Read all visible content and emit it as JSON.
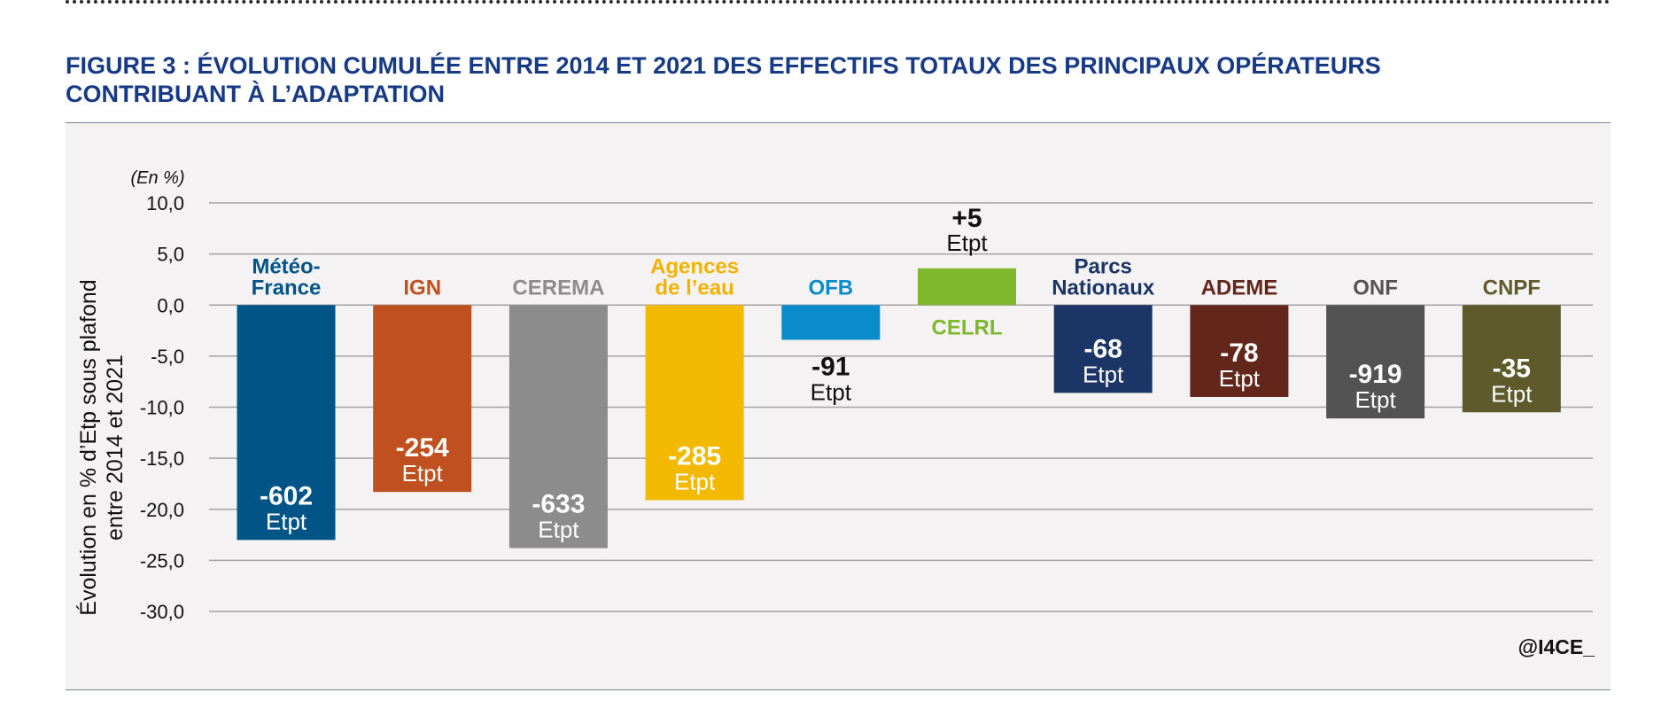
{
  "figure": {
    "title_line1": "FIGURE 3 : ÉVOLUTION CUMULÉE ENTRE 2014 ET 2021 DES EFFECTIFS TOTAUX DES PRINCIPAUX OPÉRATEURS",
    "title_line2": "CONTRIBUANT À L’ADAPTATION",
    "credit": "@I4CE_"
  },
  "colors": {
    "title": "#173a86",
    "panel_bg": "#f4f2f3",
    "grid": "#a3a3a3"
  },
  "chart_data": {
    "type": "bar",
    "unit_note": "(En %)",
    "ylabel_line1": "Évolution en % d’Etp sous plafond",
    "ylabel_line2": "entre 2014 et 2021",
    "ylim": [
      -30,
      10
    ],
    "yticks": [
      {
        "value": 10,
        "label": "10,0"
      },
      {
        "value": 5,
        "label": "5,0"
      },
      {
        "value": 0,
        "label": "0,0"
      },
      {
        "value": -5,
        "label": "-5,0"
      },
      {
        "value": -10,
        "label": "-10,0"
      },
      {
        "value": -15,
        "label": "-15,0"
      },
      {
        "value": -20,
        "label": "-20,0"
      },
      {
        "value": -25,
        "label": "-25,0"
      },
      {
        "value": -30,
        "label": "-30,0"
      }
    ],
    "grid": true,
    "categories": [
      {
        "name_lines": [
          "Météo-",
          "France"
        ],
        "value": -23.0,
        "etpt": "-602",
        "unit": "Etpt",
        "color": "#005486",
        "name_color": "#005486",
        "label_pos": "inside"
      },
      {
        "name_lines": [
          "IGN"
        ],
        "value": -18.3,
        "etpt": "-254",
        "unit": "Etpt",
        "color": "#c0501f",
        "name_color": "#c0501f",
        "label_pos": "inside"
      },
      {
        "name_lines": [
          "CEREMA"
        ],
        "value": -23.8,
        "etpt": "-633",
        "unit": "Etpt",
        "color": "#8c8c8c",
        "name_color": "#8c8c8c",
        "label_pos": "inside"
      },
      {
        "name_lines": [
          "Agences",
          "de l’eau"
        ],
        "value": -19.1,
        "etpt": "-285",
        "unit": "Etpt",
        "color": "#f2b900",
        "name_color": "#f2b200",
        "label_pos": "inside"
      },
      {
        "name_lines": [
          "OFB"
        ],
        "value": -3.4,
        "etpt": "-91",
        "unit": "Etpt",
        "color": "#0a8ccc",
        "name_color": "#0a8ccc",
        "label_pos": "below"
      },
      {
        "name_lines": [
          "CELRL"
        ],
        "value": 3.6,
        "etpt": "+5",
        "unit": "Etpt",
        "color": "#7fb82c",
        "name_color": "#7fb82c",
        "label_pos": "above"
      },
      {
        "name_lines": [
          "Parcs",
          "Nationaux"
        ],
        "value": -8.6,
        "etpt": "-68",
        "unit": "Etpt",
        "color": "#1b3566",
        "name_color": "#1b3566",
        "label_pos": "inside"
      },
      {
        "name_lines": [
          "ADEME"
        ],
        "value": -9.0,
        "etpt": "-78",
        "unit": "Etpt",
        "color": "#62271a",
        "name_color": "#62271a",
        "label_pos": "inside"
      },
      {
        "name_lines": [
          "ONF"
        ],
        "value": -11.1,
        "etpt": "-919",
        "unit": "Etpt",
        "color": "#535353",
        "name_color": "#535353",
        "label_pos": "inside"
      },
      {
        "name_lines": [
          "CNPF"
        ],
        "value": -10.5,
        "etpt": "-35",
        "unit": "Etpt",
        "color": "#5e5a2b",
        "name_color": "#5e5a2b",
        "label_pos": "inside"
      }
    ]
  }
}
